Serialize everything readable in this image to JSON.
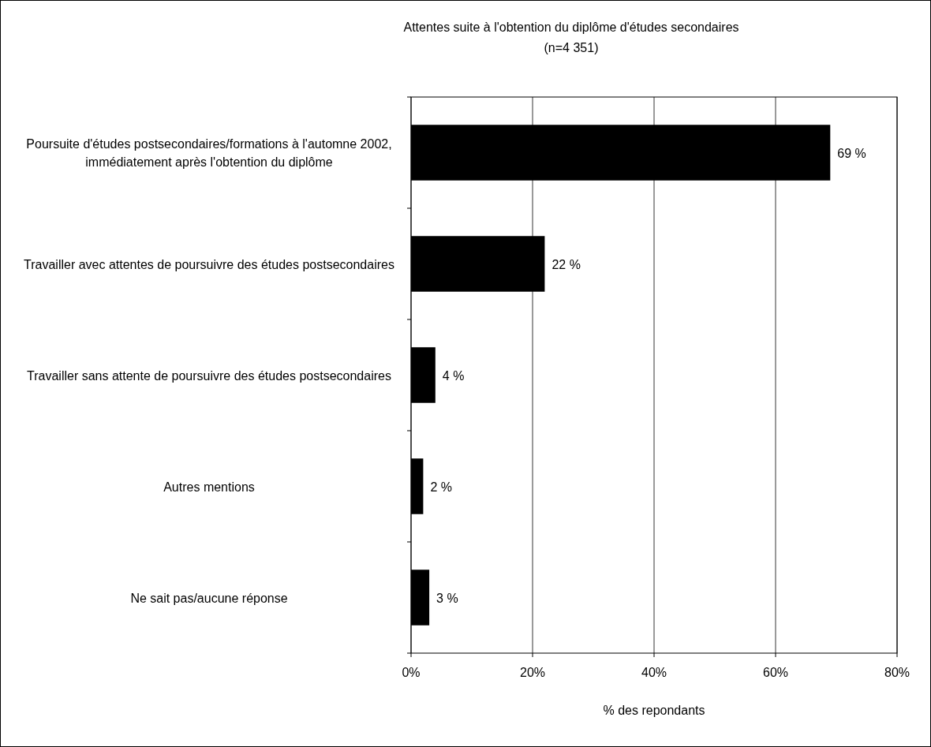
{
  "chart_data": {
    "type": "bar",
    "orientation": "horizontal",
    "title": "Attentes suite à l'obtention du diplôme d'études secondaires",
    "subtitle": "(n=4 351)",
    "xlabel": "% des repondants",
    "categories": [
      "Poursuite d'études postsecondaires/formations à l'automne 2002, immédiatement après l'obtention du diplôme",
      "Travailler avec attentes de poursuivre des études postsecondaires",
      "Travailler sans attente de poursuivre des études postsecondaires",
      "Autres mentions",
      "Ne sait pas/aucune réponse"
    ],
    "values": [
      69,
      22,
      4,
      2,
      3
    ],
    "value_labels": [
      "69 %",
      "22 %",
      "4 %",
      "2 %",
      "3 %"
    ],
    "color": "#000000",
    "xlim": [
      0,
      80
    ],
    "xticks": [
      {
        "value": 0,
        "label": "0%"
      },
      {
        "value": 20,
        "label": "20%"
      },
      {
        "value": 40,
        "label": "40%"
      },
      {
        "value": 60,
        "label": "60%"
      },
      {
        "value": 80,
        "label": "80%"
      }
    ],
    "grid": "x"
  }
}
